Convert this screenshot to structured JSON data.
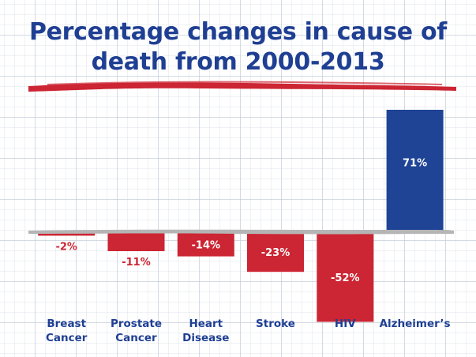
{
  "title_lines": [
    "Percentage changes in cause of",
    "death from 2000-2013"
  ],
  "colors": {
    "title": "#1f3f93",
    "negative": "#cc2533",
    "positive": "#1f4496",
    "label_on_bar": "#ffffff",
    "label_below_bar": "#cc2533",
    "category_text": "#1f3f93",
    "baseline": "#b5b5b5",
    "brush_stroke": "#cc2533"
  },
  "chart_data": {
    "type": "bar",
    "title": "Percentage changes in cause of death from 2000-2013",
    "categories": [
      [
        "Breast",
        "Cancer"
      ],
      [
        "Prostate",
        "Cancer"
      ],
      [
        "Heart",
        "Disease"
      ],
      [
        "Stroke"
      ],
      [
        "HIV"
      ],
      [
        "Alzheimer’s"
      ]
    ],
    "values": [
      -2,
      -11,
      -14,
      -23,
      -52,
      71
    ],
    "value_labels": [
      "-2%",
      "-11%",
      "-14%",
      "-23%",
      "-52%",
      "71%"
    ],
    "unit": "%",
    "ylim": [
      -55,
      80
    ],
    "grid": true,
    "legend": "none"
  }
}
